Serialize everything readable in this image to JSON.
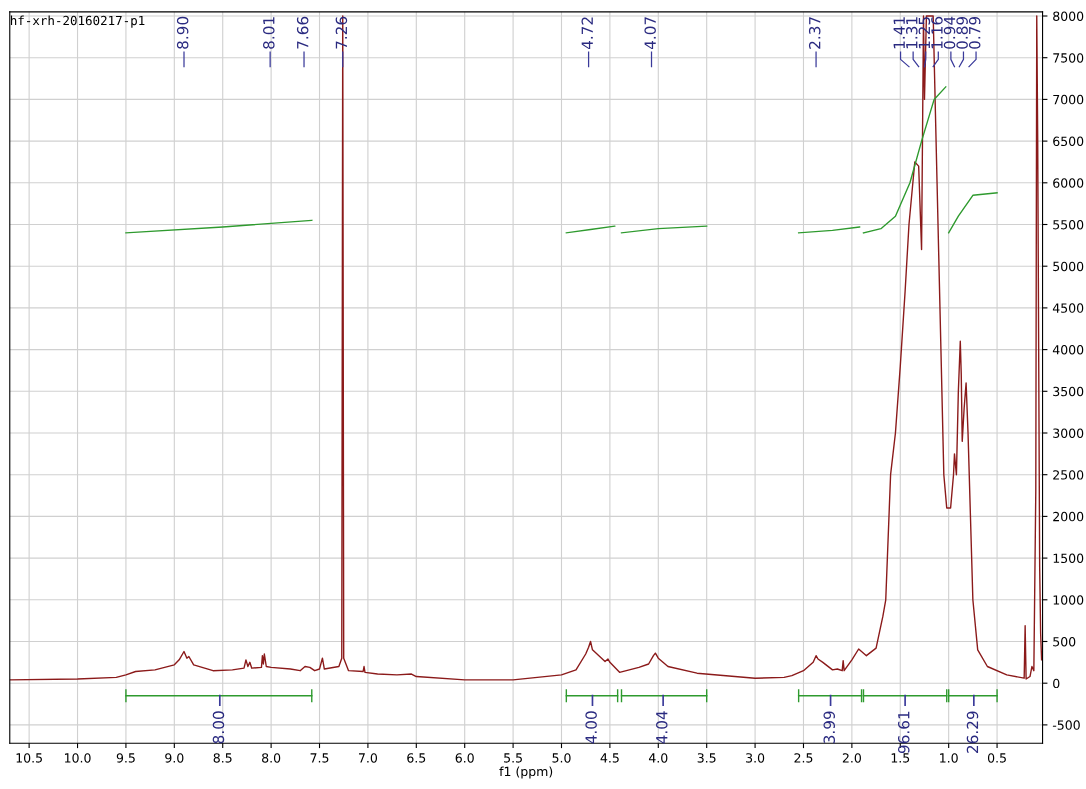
{
  "chart_data": {
    "type": "line",
    "title": "hf-xrh-20160217-p1",
    "xlabel": "f1 (ppm)",
    "xlim": [
      10.7,
      0.03
    ],
    "ylim": [
      -720,
      8050
    ],
    "xticks": [
      10.5,
      {
        "value": 10,
        "label": "10.0"
      },
      9.5,
      {
        "value": 9,
        "label": "9.0"
      },
      8.5,
      {
        "value": 8,
        "label": "8.0"
      },
      7.5,
      {
        "value": 7,
        "label": "7.0"
      },
      6.5,
      {
        "value": 6,
        "label": "6.0"
      },
      5.5,
      {
        "value": 5,
        "label": "5.0"
      },
      4.5,
      {
        "value": 4,
        "label": "4.0"
      },
      3.5,
      {
        "value": 3,
        "label": "3.0"
      },
      2.5,
      {
        "value": 2,
        "label": "2.0"
      },
      1.5,
      {
        "value": 1,
        "label": "1.0"
      },
      0.5
    ],
    "yticks": [
      -500,
      0,
      500,
      1000,
      1500,
      2000,
      2500,
      3000,
      3500,
      4000,
      4500,
      5000,
      5500,
      6000,
      6500,
      7000,
      7500,
      8000
    ],
    "grid": true,
    "series": [
      {
        "color": "#8b1a1a",
        "x": [
          10.7,
          10.0,
          9.6,
          9.5,
          9.4,
          9.2,
          9.0,
          8.95,
          8.9,
          8.87,
          8.85,
          8.8,
          8.6,
          8.4,
          8.28,
          8.26,
          8.24,
          8.22,
          8.2,
          8.1,
          8.09,
          8.08,
          8.07,
          8.05,
          8.0,
          7.8,
          7.7,
          7.65,
          7.6,
          7.55,
          7.5,
          7.47,
          7.45,
          7.3,
          7.27,
          7.26,
          7.25,
          7.2,
          7.05,
          7.04,
          7.03,
          6.9,
          6.7,
          6.55,
          6.5,
          6.0,
          5.5,
          5.0,
          4.85,
          4.75,
          4.72,
          4.7,
          4.68,
          4.55,
          4.52,
          4.5,
          4.4,
          4.2,
          4.1,
          4.05,
          4.03,
          4.0,
          3.9,
          3.6,
          3.0,
          2.7,
          2.62,
          2.5,
          2.4,
          2.37,
          2.35,
          2.3,
          2.2,
          2.15,
          2.1,
          2.09,
          2.08,
          2.0,
          1.93,
          1.85,
          1.75,
          1.68,
          1.65,
          1.6,
          1.55,
          1.5,
          1.45,
          1.41,
          1.35,
          1.31,
          1.28,
          1.26,
          1.25,
          1.23,
          1.16,
          1.12,
          1.08,
          1.05,
          1.02,
          0.98,
          0.95,
          0.94,
          0.92,
          0.9,
          0.88,
          0.87,
          0.86,
          0.84,
          0.82,
          0.8,
          0.75,
          0.7,
          0.6,
          0.4,
          0.22,
          0.21,
          0.2,
          0.16,
          0.14,
          0.12,
          0.1,
          0.09,
          0.08,
          0.06,
          0.05,
          0.04
        ],
        "values": [
          40,
          50,
          70,
          100,
          140,
          160,
          220,
          280,
          380,
          300,
          320,
          220,
          150,
          160,
          180,
          280,
          200,
          250,
          180,
          190,
          330,
          230,
          350,
          200,
          190,
          170,
          150,
          200,
          190,
          150,
          170,
          300,
          170,
          200,
          300,
          8000,
          300,
          150,
          140,
          200,
          130,
          110,
          100,
          110,
          80,
          40,
          40,
          100,
          160,
          350,
          430,
          500,
          400,
          260,
          290,
          250,
          130,
          190,
          230,
          330,
          360,
          300,
          200,
          120,
          60,
          70,
          90,
          150,
          250,
          330,
          290,
          250,
          160,
          170,
          150,
          270,
          150,
          280,
          410,
          330,
          420,
          800,
          1000,
          2500,
          3000,
          3800,
          4700,
          5500,
          6250,
          6200,
          5200,
          8000,
          7000,
          8000,
          8000,
          6000,
          4000,
          2500,
          2100,
          2100,
          2500,
          2750,
          2500,
          3500,
          4100,
          3700,
          2900,
          3300,
          3600,
          3000,
          1000,
          400,
          200,
          100,
          60,
          690,
          50,
          80,
          200,
          150,
          2300,
          8000,
          6500,
          1400,
          600,
          280
        ]
      },
      {
        "color": "#2e9a2e",
        "x": [
          9.5,
          8.5,
          7.58,
          7.57,
          4.95,
          4.7,
          4.45,
          4.44,
          4.38,
          4.0,
          3.5,
          3.49,
          2.55,
          2.2,
          1.92,
          1.91,
          1.88,
          1.7,
          1.55,
          1.4,
          1.28,
          1.15,
          1.03,
          1.02,
          1.0,
          0.9,
          0.75,
          0.5
        ],
        "values": [
          5400,
          5470,
          5550,
          null,
          5400,
          5440,
          5480,
          null,
          5400,
          5450,
          5480,
          null,
          5400,
          5430,
          5470,
          null,
          5400,
          5450,
          5600,
          6000,
          6500,
          7000,
          7150,
          null,
          5400,
          5600,
          5850,
          5880
        ]
      },
      {
        "type": "line",
        "color": "#2e9a2e",
        "x": [
          9.5,
          7.58,
          7.57,
          4.95,
          4.42,
          4.41,
          4.38,
          3.5,
          3.49,
          2.55,
          1.9,
          1.89,
          1.88,
          1.02,
          1.01,
          1.0,
          0.5
        ],
        "values": [
          -150,
          -150,
          null,
          -150,
          -150,
          null,
          -150,
          -150,
          null,
          -150,
          -150,
          null,
          -150,
          -150,
          null,
          -150,
          -150
        ]
      }
    ],
    "annotations": [
      "8.90",
      "8.01",
      "7.66",
      "7.26",
      "4.72",
      "4.07",
      "2.37",
      "1.41",
      "1.31",
      "1.25",
      "1.16",
      "0.94",
      "0.89",
      "0.79",
      {
        "text": "8.00",
        "x": 8.53,
        "y": -150
      },
      {
        "text": "4.00",
        "x": 4.68,
        "y": -150
      },
      {
        "text": "4.04",
        "x": 3.95,
        "y": -150
      },
      {
        "text": "3.99",
        "x": 2.22,
        "y": -150
      },
      {
        "text": "96.61",
        "x": 1.45,
        "y": -150
      },
      {
        "text": "26.29",
        "x": 0.74,
        "y": -150
      }
    ]
  }
}
